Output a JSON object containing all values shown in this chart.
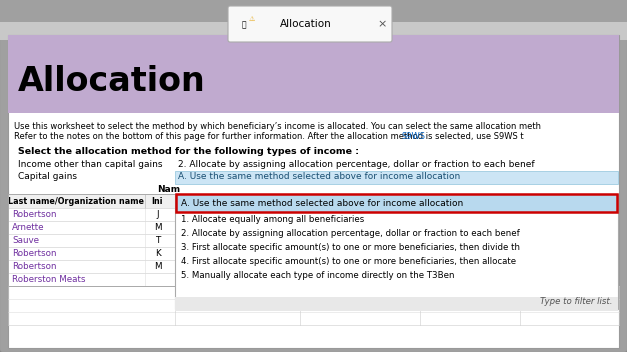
{
  "title": "Allocation",
  "tab_label": "Allocation",
  "bg_header_color": "#c0aacf",
  "bg_white": "#ffffff",
  "bg_light_blue": "#cce5f5",
  "bg_selected_blue": "#b8d9ee",
  "border_red": "#cc0000",
  "text_black": "#000000",
  "text_blue_link": "#0563c1",
  "text_purple": "#7030a0",
  "description1": "Use this worksheet to select the method by which beneficiary’s income is allocated. You can select the same allocation meth",
  "description2a": "Refer to the notes on the bottom of this page for further information. After the allocation method is selected, use ",
  "description2b": "S9WS",
  "description2c": " t",
  "section_label": "Select the allocation method for the following types of income :",
  "income_other_label": "Income other than capital gains",
  "income_other_value": "2. Allocate by assigning allocation percentage, dollar or fraction to each benef",
  "capital_gains_label": "Capital gains",
  "capital_gains_value": "A. Use the same method selected above for income allocation",
  "dropdown_selected": "A. Use the same method selected above for income allocation",
  "dropdown_items": [
    "1. Allocate equally among all beneficiaries",
    "2. Allocate by assigning allocation percentage, dollar or fraction to each benef",
    "3. First allocate specific amount(s) to one or more beneficiaries, then divide th",
    "4. First allocate specific amount(s) to one or more beneficiaries, then allocate",
    "5. Manually allocate each type of income directly on the T3Ben"
  ],
  "filter_text": "Type to filter list.",
  "table_header_name": "Last name/Organization name",
  "table_header_ini": "Ini",
  "table_col_nam": "Nam",
  "beneficiaries": [
    {
      "name": "Robertson",
      "ini": "J"
    },
    {
      "name": "Arnette",
      "ini": "M"
    },
    {
      "name": "Sauve",
      "ini": "T"
    },
    {
      "name": "Robertson",
      "ini": "K"
    },
    {
      "name": "Robertson",
      "ini": "M"
    },
    {
      "name": "Roberston Meats",
      "ini": ""
    }
  ],
  "outer_bg": "#a0a0a0",
  "tab_bar_bg": "#c8c8c8",
  "page_border": "#888888"
}
